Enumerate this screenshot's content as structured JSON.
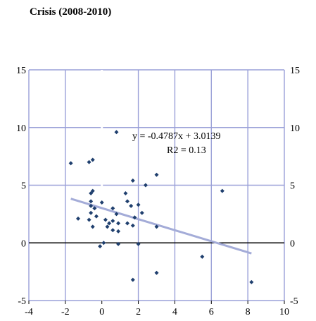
{
  "chart_data": {
    "type": "scatter",
    "title": "Crisis (2008-2010)",
    "xlabel": "",
    "ylabel": "",
    "xlim": [
      -4,
      10
    ],
    "ylim": [
      -5,
      15
    ],
    "x_ticks": [
      -4,
      -2,
      0,
      2,
      4,
      6,
      8,
      10
    ],
    "y_ticks": [
      -5,
      0,
      5,
      10,
      15
    ],
    "x_tick_labels": [
      "-4",
      "-2",
      "0",
      "2",
      "4",
      "6",
      "8",
      "10"
    ],
    "y_tick_labels": [
      "-5",
      "0",
      "5",
      "10",
      "15"
    ],
    "grid": true,
    "points": [
      {
        "x": 0.8,
        "y": 9.6
      },
      {
        "x": -1.7,
        "y": 6.9
      },
      {
        "x": -0.7,
        "y": 7.0
      },
      {
        "x": -0.5,
        "y": 7.2
      },
      {
        "x": 3.0,
        "y": 5.9
      },
      {
        "x": 1.7,
        "y": 5.4
      },
      {
        "x": 2.4,
        "y": 5.0
      },
      {
        "x": 6.6,
        "y": 4.5
      },
      {
        "x": -0.6,
        "y": 4.3
      },
      {
        "x": -0.5,
        "y": 4.5
      },
      {
        "x": 1.3,
        "y": 4.3
      },
      {
        "x": -0.6,
        "y": 3.6
      },
      {
        "x": -0.6,
        "y": 3.2
      },
      {
        "x": 0.0,
        "y": 3.5
      },
      {
        "x": 1.4,
        "y": 3.6
      },
      {
        "x": -0.4,
        "y": 3.0
      },
      {
        "x": -0.6,
        "y": 2.6
      },
      {
        "x": 1.6,
        "y": 3.2
      },
      {
        "x": 2.0,
        "y": 3.3
      },
      {
        "x": 0.6,
        "y": 3.0
      },
      {
        "x": 0.8,
        "y": 2.5
      },
      {
        "x": 2.2,
        "y": 2.6
      },
      {
        "x": -0.3,
        "y": 2.3
      },
      {
        "x": 1.8,
        "y": 2.2
      },
      {
        "x": -1.3,
        "y": 2.1
      },
      {
        "x": -0.7,
        "y": 2.0
      },
      {
        "x": 0.2,
        "y": 2.0
      },
      {
        "x": 0.6,
        "y": 1.9
      },
      {
        "x": 0.4,
        "y": 1.7
      },
      {
        "x": 0.9,
        "y": 1.7
      },
      {
        "x": 1.4,
        "y": 1.7
      },
      {
        "x": 1.7,
        "y": 1.5
      },
      {
        "x": 0.3,
        "y": 1.4
      },
      {
        "x": -0.5,
        "y": 1.4
      },
      {
        "x": 0.6,
        "y": 1.1
      },
      {
        "x": 0.9,
        "y": 1.0
      },
      {
        "x": 3.0,
        "y": 1.4
      },
      {
        "x": 0.1,
        "y": 0.0
      },
      {
        "x": -0.1,
        "y": -0.3
      },
      {
        "x": 0.9,
        "y": -0.1
      },
      {
        "x": 2.0,
        "y": -0.1
      },
      {
        "x": 5.5,
        "y": -1.2
      },
      {
        "x": 3.0,
        "y": -2.6
      },
      {
        "x": 1.7,
        "y": -3.2
      },
      {
        "x": 8.2,
        "y": -3.4
      }
    ],
    "trendline": {
      "slope": -0.4787,
      "intercept": 3.0139,
      "x_range": [
        -1.7,
        8.2
      ],
      "equation_label": "y = -0.4787x + 3.0139",
      "r2_label": "R2 = 0.13"
    },
    "colors": {
      "grid": "#9aa0d8",
      "point": "#1f3f6e",
      "trendline": "#a4acd8",
      "zero_line": "#000000"
    }
  }
}
